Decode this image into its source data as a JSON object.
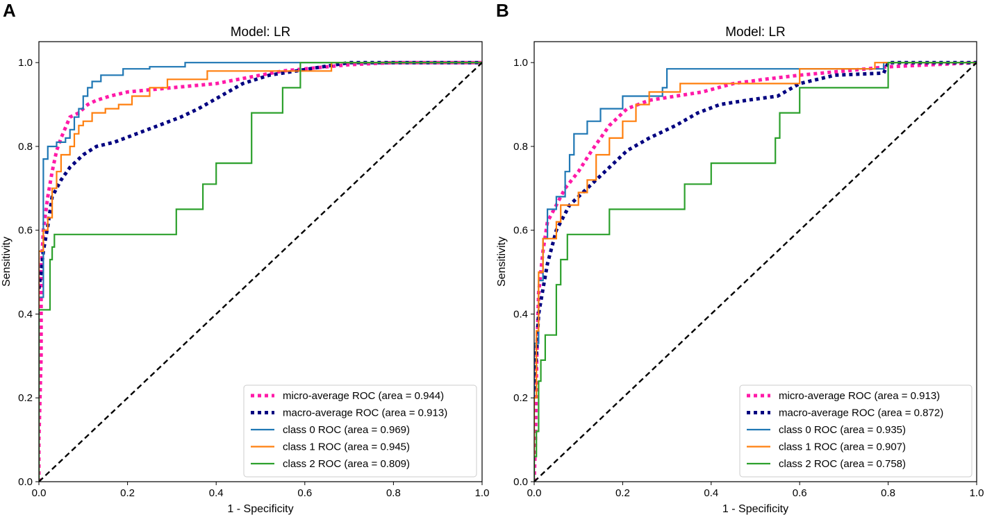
{
  "colors": {
    "micro": "#ff1aa8",
    "macro": "#000080",
    "class0": "#1f77b4",
    "class1": "#ff7f0e",
    "class2": "#2ca02c",
    "chance": "#000000"
  },
  "chart_data": [
    {
      "type": "line",
      "panel_label": "A",
      "title": "Model: LR",
      "xlabel": "1 - Specificity",
      "ylabel": "Sensitivity",
      "xlim": [
        0.0,
        1.0
      ],
      "ylim": [
        0.0,
        1.05
      ],
      "xticks": [
        "0.0",
        "0.2",
        "0.4",
        "0.6",
        "0.8",
        "1.0"
      ],
      "yticks": [
        "0.0",
        "0.2",
        "0.4",
        "0.6",
        "0.8",
        "1.0"
      ],
      "legend_position": "lower-right",
      "series": [
        {
          "key": "micro",
          "name": "micro-average ROC (area = 0.944)",
          "style": "dotted",
          "x": [
            0,
            0,
            0.005,
            0.005,
            0.01,
            0.02,
            0.03,
            0.04,
            0.05,
            0.07,
            0.09,
            0.11,
            0.13,
            0.16,
            0.2,
            0.25,
            0.3,
            0.35,
            0.4,
            0.45,
            0.5,
            0.55,
            0.6,
            0.65,
            0.7,
            0.8,
            1.0
          ],
          "y": [
            0,
            0.1,
            0.3,
            0.5,
            0.6,
            0.68,
            0.74,
            0.79,
            0.82,
            0.87,
            0.88,
            0.9,
            0.91,
            0.92,
            0.93,
            0.935,
            0.94,
            0.945,
            0.95,
            0.96,
            0.97,
            0.98,
            0.985,
            0.99,
            0.995,
            1.0,
            1.0
          ]
        },
        {
          "key": "macro",
          "name": "macro-average ROC (area = 0.913)",
          "style": "dotted",
          "x": [
            0,
            0.005,
            0.01,
            0.02,
            0.03,
            0.05,
            0.07,
            0.1,
            0.13,
            0.17,
            0.22,
            0.27,
            0.32,
            0.36,
            0.41,
            0.46,
            0.52,
            0.58,
            0.64,
            0.7,
            0.8,
            1.0
          ],
          "y": [
            0.46,
            0.5,
            0.55,
            0.61,
            0.68,
            0.72,
            0.75,
            0.78,
            0.8,
            0.81,
            0.83,
            0.85,
            0.87,
            0.89,
            0.92,
            0.95,
            0.97,
            0.98,
            0.99,
            1.0,
            1.0,
            1.0
          ]
        },
        {
          "key": "class0",
          "name": "class 0 ROC (area = 0.969)",
          "style": "solid",
          "x": [
            0,
            0.0,
            0.01,
            0.01,
            0.02,
            0.02,
            0.04,
            0.04,
            0.06,
            0.06,
            0.07,
            0.07,
            0.08,
            0.08,
            0.09,
            0.09,
            0.1,
            0.1,
            0.11,
            0.11,
            0.12,
            0.12,
            0.14,
            0.14,
            0.19,
            0.19,
            0.25,
            0.25,
            0.33,
            0.33,
            0.6,
            1.0
          ],
          "y": [
            0,
            0.44,
            0.44,
            0.77,
            0.77,
            0.8,
            0.8,
            0.81,
            0.81,
            0.82,
            0.82,
            0.84,
            0.84,
            0.87,
            0.87,
            0.89,
            0.89,
            0.92,
            0.92,
            0.94,
            0.94,
            0.955,
            0.955,
            0.97,
            0.97,
            0.985,
            0.985,
            0.99,
            0.99,
            1.0,
            1.0,
            1.0
          ]
        },
        {
          "key": "class1",
          "name": "class 1 ROC (area = 0.945)",
          "style": "solid",
          "x": [
            0,
            0.0,
            0.01,
            0.01,
            0.02,
            0.02,
            0.03,
            0.03,
            0.04,
            0.04,
            0.05,
            0.05,
            0.07,
            0.07,
            0.08,
            0.08,
            0.09,
            0.09,
            0.1,
            0.1,
            0.12,
            0.12,
            0.15,
            0.15,
            0.18,
            0.18,
            0.21,
            0.21,
            0.25,
            0.25,
            0.29,
            0.29,
            0.38,
            0.38,
            0.66,
            0.66,
            1.0
          ],
          "y": [
            0,
            0.55,
            0.55,
            0.6,
            0.6,
            0.63,
            0.63,
            0.7,
            0.7,
            0.74,
            0.74,
            0.78,
            0.78,
            0.8,
            0.8,
            0.83,
            0.83,
            0.85,
            0.85,
            0.86,
            0.86,
            0.88,
            0.88,
            0.89,
            0.89,
            0.9,
            0.9,
            0.92,
            0.92,
            0.94,
            0.94,
            0.96,
            0.96,
            0.98,
            0.98,
            1.0,
            1.0
          ]
        },
        {
          "key": "class2",
          "name": "class 2 ROC (area = 0.809)",
          "style": "solid",
          "x": [
            0,
            0.0,
            0.025,
            0.025,
            0.03,
            0.03,
            0.035,
            0.035,
            0.31,
            0.31,
            0.37,
            0.37,
            0.4,
            0.4,
            0.48,
            0.48,
            0.55,
            0.55,
            0.59,
            0.59,
            1.0
          ],
          "y": [
            0,
            0.41,
            0.41,
            0.53,
            0.53,
            0.56,
            0.56,
            0.59,
            0.59,
            0.65,
            0.65,
            0.71,
            0.71,
            0.76,
            0.76,
            0.88,
            0.88,
            0.94,
            0.94,
            1.0,
            1.0
          ]
        },
        {
          "key": "chance",
          "name": "",
          "style": "dashed",
          "x": [
            0,
            1
          ],
          "y": [
            0,
            1
          ]
        }
      ]
    },
    {
      "type": "line",
      "panel_label": "B",
      "title": "Model: LR",
      "xlabel": "1 - Specificity",
      "ylabel": "Sensitivity",
      "xlim": [
        0.0,
        1.0
      ],
      "ylim": [
        0.0,
        1.05
      ],
      "xticks": [
        "0.0",
        "0.2",
        "0.4",
        "0.6",
        "0.8",
        "1.0"
      ],
      "yticks": [
        "0.0",
        "0.2",
        "0.4",
        "0.6",
        "0.8",
        "1.0"
      ],
      "legend_position": "lower-right",
      "series": [
        {
          "key": "micro",
          "name": "micro-average ROC (area = 0.913)",
          "style": "dotted",
          "x": [
            0,
            0.003,
            0.006,
            0.01,
            0.02,
            0.03,
            0.05,
            0.07,
            0.1,
            0.13,
            0.17,
            0.21,
            0.26,
            0.32,
            0.38,
            0.45,
            0.52,
            0.6,
            0.7,
            0.8,
            1.0
          ],
          "y": [
            0,
            0.1,
            0.3,
            0.45,
            0.55,
            0.62,
            0.66,
            0.7,
            0.74,
            0.79,
            0.85,
            0.89,
            0.91,
            0.92,
            0.93,
            0.95,
            0.96,
            0.97,
            0.98,
            0.99,
            1.0
          ]
        },
        {
          "key": "macro",
          "name": "macro-average ROC (area = 0.872)",
          "style": "dotted",
          "x": [
            0,
            0.005,
            0.01,
            0.02,
            0.03,
            0.05,
            0.08,
            0.12,
            0.16,
            0.21,
            0.26,
            0.32,
            0.37,
            0.42,
            0.48,
            0.55,
            0.6,
            0.68,
            0.79,
            0.8,
            1.0
          ],
          "y": [
            0.22,
            0.3,
            0.4,
            0.46,
            0.52,
            0.6,
            0.66,
            0.7,
            0.74,
            0.79,
            0.82,
            0.85,
            0.88,
            0.9,
            0.91,
            0.92,
            0.95,
            0.97,
            0.975,
            1.0,
            1.0
          ]
        },
        {
          "key": "class0",
          "name": "class 0 ROC (area = 0.935)",
          "style": "solid",
          "x": [
            0,
            0.0,
            0.01,
            0.01,
            0.02,
            0.02,
            0.03,
            0.03,
            0.05,
            0.05,
            0.07,
            0.07,
            0.08,
            0.08,
            0.09,
            0.09,
            0.12,
            0.12,
            0.15,
            0.15,
            0.2,
            0.2,
            0.29,
            0.29,
            0.3,
            0.3,
            0.79,
            0.79,
            1.0
          ],
          "y": [
            0,
            0.33,
            0.33,
            0.48,
            0.48,
            0.58,
            0.58,
            0.65,
            0.65,
            0.68,
            0.68,
            0.74,
            0.74,
            0.78,
            0.78,
            0.83,
            0.83,
            0.86,
            0.86,
            0.89,
            0.89,
            0.92,
            0.92,
            0.94,
            0.94,
            0.985,
            0.985,
            1.0,
            1.0
          ]
        },
        {
          "key": "class1",
          "name": "class 1 ROC (area = 0.907)",
          "style": "solid",
          "x": [
            0,
            0.0,
            0.005,
            0.005,
            0.01,
            0.01,
            0.02,
            0.02,
            0.05,
            0.05,
            0.06,
            0.06,
            0.1,
            0.1,
            0.12,
            0.12,
            0.14,
            0.14,
            0.17,
            0.17,
            0.2,
            0.2,
            0.23,
            0.23,
            0.26,
            0.26,
            0.33,
            0.33,
            0.6,
            0.6,
            0.77,
            0.77,
            1.0
          ],
          "y": [
            0,
            0.2,
            0.2,
            0.36,
            0.36,
            0.5,
            0.5,
            0.58,
            0.58,
            0.62,
            0.62,
            0.66,
            0.66,
            0.69,
            0.69,
            0.72,
            0.72,
            0.78,
            0.78,
            0.82,
            0.82,
            0.86,
            0.86,
            0.9,
            0.9,
            0.93,
            0.93,
            0.95,
            0.95,
            0.985,
            0.985,
            1.0,
            1.0
          ]
        },
        {
          "key": "class2",
          "name": "class 2 ROC (area = 0.758)",
          "style": "solid",
          "x": [
            0,
            0.0,
            0.005,
            0.005,
            0.01,
            0.01,
            0.015,
            0.015,
            0.025,
            0.025,
            0.05,
            0.05,
            0.06,
            0.06,
            0.075,
            0.075,
            0.17,
            0.17,
            0.34,
            0.34,
            0.4,
            0.4,
            0.41,
            0.41,
            0.545,
            0.545,
            0.555,
            0.555,
            0.565,
            0.565,
            0.6,
            0.6,
            0.8,
            0.8,
            1.0
          ],
          "y": [
            0,
            0.06,
            0.06,
            0.12,
            0.12,
            0.24,
            0.24,
            0.29,
            0.29,
            0.35,
            0.35,
            0.47,
            0.47,
            0.53,
            0.53,
            0.59,
            0.59,
            0.65,
            0.65,
            0.71,
            0.71,
            0.76,
            0.76,
            0.76,
            0.76,
            0.82,
            0.82,
            0.88,
            0.88,
            0.88,
            0.88,
            0.94,
            0.94,
            1.0,
            1.0
          ]
        },
        {
          "key": "chance",
          "name": "",
          "style": "dashed",
          "x": [
            0,
            1
          ],
          "y": [
            0,
            1
          ]
        }
      ]
    }
  ]
}
